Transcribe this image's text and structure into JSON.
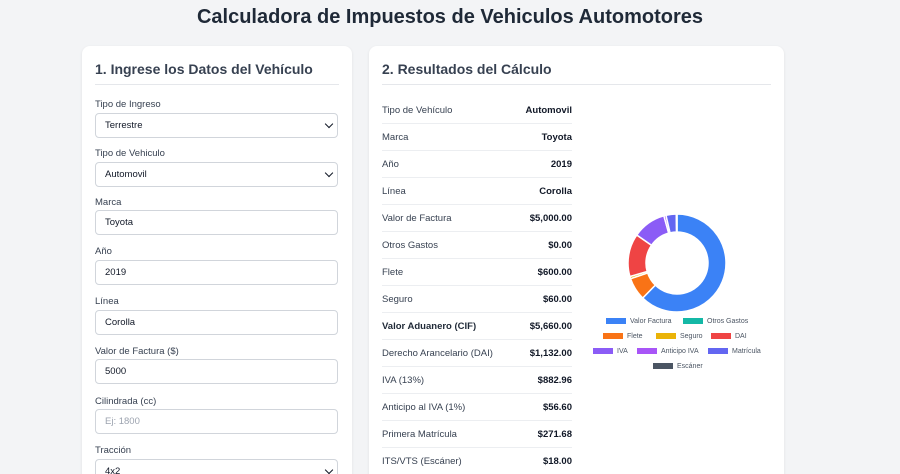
{
  "page": {
    "title": "Calculadora de Impuestos de Vehiculos Automotores"
  },
  "form": {
    "title": "1. Ingrese los Datos del Vehículo",
    "fields": [
      {
        "label": "Tipo de Ingreso",
        "value": "Terrestre",
        "type": "select"
      },
      {
        "label": "Tipo de Vehiculo",
        "value": "Automovil",
        "type": "select"
      },
      {
        "label": "Marca",
        "value": "Toyota",
        "type": "input"
      },
      {
        "label": "Año",
        "value": "2019",
        "type": "input"
      },
      {
        "label": "Línea",
        "value": "Corolla",
        "type": "input"
      },
      {
        "label": "Valor de Factura ($)",
        "value": "5000",
        "type": "input"
      },
      {
        "label": "Cilindrada (cc)",
        "value": "",
        "placeholder": "Ej: 1800",
        "type": "input"
      },
      {
        "label": "Tracción",
        "value": "4x2",
        "type": "select"
      }
    ]
  },
  "results": {
    "title": "2. Resultados del Cálculo",
    "rows": [
      {
        "label": "Tipo de Vehículo",
        "value": "Automovil"
      },
      {
        "label": "Marca",
        "value": "Toyota"
      },
      {
        "label": "Año",
        "value": "2019"
      },
      {
        "label": "Línea",
        "value": "Corolla"
      },
      {
        "label": "Valor de Factura",
        "value": "$5,000.00"
      },
      {
        "label": "Otros Gastos",
        "value": "$0.00"
      },
      {
        "label": "Flete",
        "value": "$600.00"
      },
      {
        "label": "Seguro",
        "value": "$60.00"
      },
      {
        "label": "Valor Aduanero (CIF)",
        "value": "$5,660.00",
        "strong": true
      },
      {
        "label": "Derecho Arancelario (DAI)",
        "value": "$1,132.00"
      },
      {
        "label": "IVA (13%)",
        "value": "$882.96"
      },
      {
        "label": "Anticipo al IVA (1%)",
        "value": "$56.60"
      },
      {
        "label": "Primera Matrícula",
        "value": "$271.68"
      },
      {
        "label": "ITS/VTS (Escáner)",
        "value": "$18.00"
      }
    ]
  },
  "chart_data": {
    "type": "pie",
    "variant": "doughnut",
    "legend_position": "bottom",
    "series": [
      {
        "name": "Valor Factura",
        "value": 5000,
        "color": "#3b82f6"
      },
      {
        "name": "Otros Gastos",
        "value": 0,
        "color": "#14b8a6"
      },
      {
        "name": "Flete",
        "value": 600,
        "color": "#f97316"
      },
      {
        "name": "Seguro",
        "value": 60,
        "color": "#eab308"
      },
      {
        "name": "DAI",
        "value": 1132,
        "color": "#ef4444"
      },
      {
        "name": "IVA",
        "value": 882.96,
        "color": "#8b5cf6"
      },
      {
        "name": "Anticipo IVA",
        "value": 56.6,
        "color": "#a855f7"
      },
      {
        "name": "Matrícula",
        "value": 271.68,
        "color": "#6366f1"
      },
      {
        "name": "Escáner",
        "value": 18,
        "color": "#4b5563"
      }
    ]
  }
}
